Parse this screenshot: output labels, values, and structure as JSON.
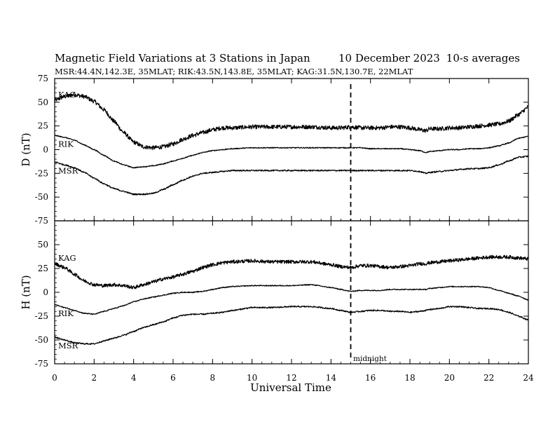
{
  "title": "Magnetic Field Variations at 3 Stations in Japan",
  "date": "10 December 2023",
  "averaging": "10-s averages",
  "subtitle": "MSR:44.4N,142.3E, 35MLAT;  RIK:43.5N,143.8E, 35MLAT;  KAG:31.5N,130.7E, 22MLAT",
  "xlabel": "Universal Time",
  "midnight_label": "midnight",
  "colors": {
    "trace": "#000000",
    "axes": "#000000",
    "background": "#ffffff"
  },
  "chart_data": [
    {
      "type": "line",
      "panel": "D",
      "ylabel": "D (nT)",
      "xlim": [
        0,
        24
      ],
      "ylim": [
        -75,
        75
      ],
      "xticks": [
        0,
        2,
        4,
        6,
        8,
        10,
        12,
        14,
        16,
        18,
        20,
        22,
        24
      ],
      "yticks": [
        -75,
        -50,
        -25,
        0,
        25,
        50,
        75
      ],
      "grid": false,
      "vline": {
        "x": 15,
        "style": "dashed"
      },
      "x": [
        0,
        0.5,
        1,
        1.5,
        2,
        2.5,
        3,
        3.5,
        4,
        4.5,
        5,
        5.5,
        6,
        6.5,
        7,
        7.5,
        8,
        8.5,
        9,
        10,
        11,
        12,
        13,
        14,
        14.5,
        15,
        15.5,
        16,
        16.5,
        17,
        17.5,
        18,
        18.5,
        18.8,
        19,
        19.5,
        20,
        20.5,
        21,
        21.5,
        22,
        22.5,
        23,
        23.5,
        24
      ],
      "series": [
        {
          "name": "KAG",
          "label_text": "KAG",
          "values": [
            52,
            56,
            58,
            56,
            51,
            42,
            30,
            18,
            8,
            3,
            2,
            3,
            6,
            11,
            15,
            18,
            21,
            23,
            23,
            24,
            24,
            24,
            24,
            23,
            23,
            24,
            23,
            23,
            23,
            24,
            24,
            23,
            21,
            20,
            22,
            22,
            23,
            23,
            24,
            25,
            26,
            27,
            30,
            37,
            45
          ],
          "noise": 2.2
        },
        {
          "name": "RIK",
          "label_text": "RIK",
          "values": [
            15,
            13,
            10,
            5,
            0,
            -6,
            -12,
            -16,
            -19,
            -18,
            -17,
            -15,
            -12,
            -9,
            -6,
            -3,
            -1,
            0,
            1,
            2,
            2,
            2,
            2,
            2,
            2,
            2,
            2,
            1,
            1,
            1,
            1,
            0,
            -1,
            -3,
            -2,
            -1,
            0,
            0,
            1,
            1,
            2,
            4,
            7,
            12,
            14
          ],
          "noise": 0.5
        },
        {
          "name": "MSR",
          "label_text": "MSR",
          "values": [
            -13,
            -16,
            -19,
            -24,
            -30,
            -36,
            -41,
            -44,
            -47,
            -47,
            -46,
            -42,
            -37,
            -32,
            -28,
            -25,
            -24,
            -23,
            -22,
            -22,
            -22,
            -22,
            -22,
            -22,
            -22,
            -22,
            -22,
            -22,
            -22,
            -22,
            -22,
            -22,
            -23,
            -25,
            -24,
            -23,
            -22,
            -21,
            -20,
            -20,
            -19,
            -16,
            -12,
            -8,
            -7
          ],
          "noise": 0.7
        }
      ]
    },
    {
      "type": "line",
      "panel": "H",
      "ylabel": "H (nT)",
      "xlim": [
        0,
        24
      ],
      "ylim": [
        -75,
        75
      ],
      "xticks": [
        0,
        2,
        4,
        6,
        8,
        10,
        12,
        14,
        16,
        18,
        20,
        22,
        24
      ],
      "yticks": [
        -75,
        -50,
        -25,
        0,
        25,
        50,
        75
      ],
      "grid": false,
      "vline": {
        "x": 15,
        "style": "dashed"
      },
      "x": [
        0,
        0.5,
        1,
        1.5,
        2,
        2.5,
        3,
        3.5,
        4,
        4.5,
        5,
        5.5,
        6,
        6.5,
        7,
        7.5,
        8,
        8.5,
        9,
        10,
        11,
        12,
        13,
        14,
        14.5,
        15,
        15.5,
        16,
        16.5,
        17,
        17.5,
        18,
        18.5,
        18.8,
        19,
        19.5,
        20,
        20.5,
        21,
        21.5,
        22,
        22.5,
        23,
        23.5,
        24
      ],
      "series": [
        {
          "name": "KAG",
          "label_text": "KAG",
          "values": [
            30,
            26,
            19,
            12,
            8,
            7,
            8,
            7,
            5,
            8,
            11,
            14,
            16,
            19,
            22,
            26,
            29,
            31,
            32,
            33,
            32,
            32,
            32,
            29,
            27,
            26,
            28,
            28,
            27,
            26,
            27,
            28,
            30,
            30,
            31,
            32,
            33,
            34,
            35,
            36,
            37,
            37,
            37,
            36,
            35
          ],
          "noise": 1.8
        },
        {
          "name": "RIK",
          "label_text": "RIK",
          "values": [
            -13,
            -16,
            -19,
            -22,
            -23,
            -20,
            -17,
            -14,
            -10,
            -7,
            -5,
            -3,
            -1,
            0,
            0,
            1,
            3,
            5,
            6,
            7,
            7,
            7,
            8,
            5,
            3,
            1,
            2,
            2,
            2,
            3,
            3,
            3,
            3,
            3,
            4,
            5,
            6,
            6,
            6,
            6,
            5,
            2,
            -1,
            -4,
            -8
          ],
          "noise": 0.5
        },
        {
          "name": "MSR",
          "label_text": "MSR",
          "values": [
            -47,
            -50,
            -53,
            -54,
            -54,
            -51,
            -48,
            -45,
            -41,
            -37,
            -34,
            -31,
            -27,
            -24,
            -23,
            -23,
            -22,
            -21,
            -19,
            -16,
            -16,
            -15,
            -15,
            -17,
            -19,
            -21,
            -20,
            -19,
            -19,
            -20,
            -20,
            -21,
            -20,
            -19,
            -18,
            -17,
            -15,
            -15,
            -16,
            -17,
            -17,
            -18,
            -21,
            -25,
            -29
          ],
          "noise": 0.7
        }
      ]
    }
  ]
}
